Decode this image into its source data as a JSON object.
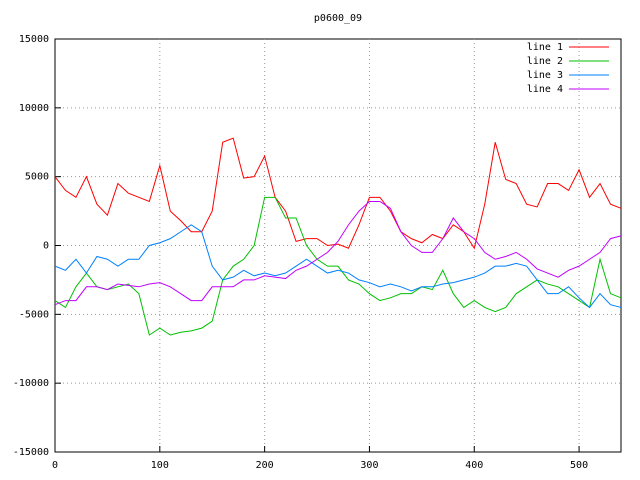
{
  "chart_data": {
    "type": "line",
    "title": "p0600_09",
    "x": [
      0,
      10,
      20,
      30,
      40,
      50,
      60,
      70,
      80,
      90,
      100,
      110,
      120,
      130,
      140,
      150,
      160,
      170,
      180,
      190,
      200,
      210,
      220,
      230,
      240,
      250,
      260,
      270,
      280,
      290,
      300,
      310,
      320,
      330,
      340,
      350,
      360,
      370,
      380,
      390,
      400,
      410,
      420,
      430,
      440,
      450,
      460,
      470,
      480,
      490,
      500,
      510,
      520,
      530,
      540
    ],
    "series": [
      {
        "name": "line 1",
        "color": "#ff0000",
        "values": [
          5000,
          4000,
          3500,
          5000,
          3000,
          2200,
          4500,
          3800,
          3500,
          3200,
          5800,
          2500,
          1800,
          1000,
          1000,
          2500,
          7500,
          7800,
          4900,
          5000,
          6500,
          3500,
          2500,
          300,
          500,
          500,
          0,
          100,
          -200,
          1500,
          3500,
          3500,
          2500,
          1000,
          500,
          200,
          800,
          500,
          1500,
          1000,
          -200,
          3000,
          7500,
          4800,
          4500,
          3000,
          2800,
          4500,
          4500,
          4000,
          5500,
          3500,
          4500,
          3000,
          2700
        ]
      },
      {
        "name": "line 2",
        "color": "#00c000",
        "values": [
          -4000,
          -4500,
          -3000,
          -2000,
          -3000,
          -3200,
          -3000,
          -2800,
          -3500,
          -6500,
          -6000,
          -6500,
          -6300,
          -6200,
          -6000,
          -5500,
          -2500,
          -1500,
          -1000,
          0,
          3500,
          3500,
          2000,
          2000,
          0,
          -1000,
          -1500,
          -1500,
          -2500,
          -2800,
          -3500,
          -4000,
          -3800,
          -3500,
          -3500,
          -3000,
          -3200,
          -1800,
          -3500,
          -4500,
          -4000,
          -4500,
          -4800,
          -4500,
          -3500,
          -3000,
          -2500,
          -2800,
          -3000,
          -3500,
          -4000,
          -4500,
          -1000,
          -3500,
          -3800
        ]
      },
      {
        "name": "line 3",
        "color": "#0080ff",
        "values": [
          -1500,
          -1800,
          -1000,
          -2000,
          -800,
          -1000,
          -1500,
          -1000,
          -1000,
          0,
          200,
          500,
          1000,
          1500,
          1000,
          -1500,
          -2500,
          -2300,
          -1800,
          -2200,
          -2000,
          -2200,
          -2000,
          -1500,
          -1000,
          -1500,
          -2000,
          -1800,
          -2000,
          -2500,
          -2700,
          -3000,
          -2800,
          -3000,
          -3300,
          -3000,
          -3000,
          -2800,
          -2700,
          -2500,
          -2300,
          -2000,
          -1500,
          -1500,
          -1300,
          -1500,
          -2500,
          -3500,
          -3500,
          -3000,
          -3800,
          -4500,
          -3500,
          -4300,
          -4500
        ]
      },
      {
        "name": "line 4",
        "color": "#c000ff",
        "values": [
          -4300,
          -4000,
          -4000,
          -3000,
          -3000,
          -3200,
          -2800,
          -2900,
          -3000,
          -2800,
          -2700,
          -3000,
          -3500,
          -4000,
          -4000,
          -3000,
          -3000,
          -3000,
          -2500,
          -2500,
          -2200,
          -2300,
          -2400,
          -1800,
          -1500,
          -1000,
          -500,
          300,
          1500,
          2500,
          3200,
          3200,
          2700,
          1000,
          0,
          -500,
          -500,
          500,
          2000,
          1000,
          500,
          -500,
          -1000,
          -800,
          -500,
          -1000,
          -1700,
          -2000,
          -2300,
          -1800,
          -1500,
          -1000,
          -500,
          500,
          700
        ]
      }
    ],
    "xlim": [
      0,
      540
    ],
    "xticks": [
      0,
      100,
      200,
      300,
      400,
      500
    ],
    "ylim": [
      -15000,
      15000
    ],
    "yticks": [
      -15000,
      -10000,
      -5000,
      0,
      5000,
      10000,
      15000
    ],
    "grid": true,
    "legend": "top-right"
  }
}
